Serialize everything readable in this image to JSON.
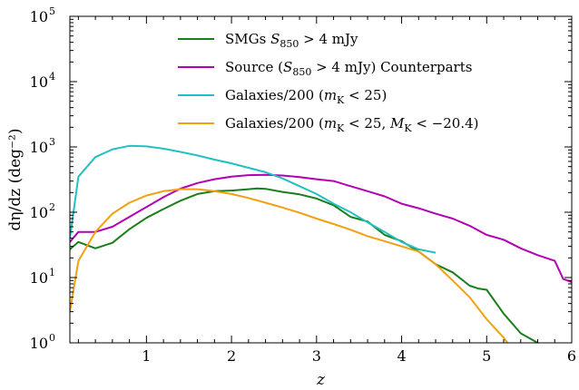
{
  "chart_data": {
    "type": "line",
    "xlabel": "z",
    "ylabel": "dη/dz (deg⁻²)",
    "xlim": [
      0.1,
      6.0
    ],
    "ylim_log10": [
      0,
      5
    ],
    "yscale": "log",
    "x_tick_labels": [
      "1",
      "2",
      "3",
      "4",
      "5",
      "6"
    ],
    "x_ticks": [
      1,
      2,
      3,
      4,
      5,
      6
    ],
    "y_ticks_log10": [
      0,
      1,
      2,
      3,
      4,
      5
    ],
    "y_tick_base": "10",
    "legend_position": "top-right",
    "series": [
      {
        "name": "SMGs S850 > 4 mJy",
        "name_parts": {
          "pre": "SMGs ",
          "var": "S",
          "sub": "850",
          "post": " > 4 mJy"
        },
        "color": "#1a7f1a",
        "x": [
          0.1,
          0.2,
          0.4,
          0.6,
          0.8,
          1.0,
          1.2,
          1.4,
          1.6,
          1.8,
          2.0,
          2.2,
          2.3,
          2.4,
          2.6,
          2.8,
          3.0,
          3.2,
          3.4,
          3.6,
          3.8,
          4.0,
          4.2,
          4.4,
          4.6,
          4.8,
          4.9,
          5.0,
          5.2,
          5.4,
          5.6,
          5.8
        ],
        "y": [
          27,
          35,
          28,
          34,
          55,
          82,
          112,
          150,
          190,
          210,
          215,
          225,
          232,
          228,
          205,
          188,
          162,
          128,
          85,
          72,
          45,
          36,
          25,
          16,
          12,
          7.5,
          6.8,
          6.5,
          2.8,
          1.4,
          1.0,
          0.8
        ]
      },
      {
        "name": "Source (S850 > 4 mJy) Counterparts",
        "name_parts": {
          "pre": "Source (",
          "var": "S",
          "sub": "850",
          "post": " > 4 mJy) Counterparts"
        },
        "color": "#b400b4",
        "x": [
          0.1,
          0.2,
          0.4,
          0.6,
          0.8,
          1.0,
          1.2,
          1.4,
          1.6,
          1.8,
          2.0,
          2.2,
          2.4,
          2.6,
          2.8,
          3.0,
          3.2,
          3.4,
          3.6,
          3.8,
          4.0,
          4.2,
          4.4,
          4.6,
          4.8,
          5.0,
          5.2,
          5.4,
          5.6,
          5.8,
          5.9,
          6.0
        ],
        "y": [
          35,
          50,
          50,
          60,
          85,
          120,
          170,
          230,
          280,
          320,
          350,
          370,
          375,
          365,
          345,
          320,
          300,
          250,
          210,
          175,
          135,
          115,
          95,
          80,
          62,
          45,
          38,
          28,
          22,
          18,
          9.5,
          8.5
        ]
      },
      {
        "name": "Galaxies/200 (mK < 25)",
        "name_parts": {
          "pre": "Galaxies/200 (",
          "var": "m",
          "sub": "K",
          "post": " < 25)"
        },
        "color": "#22c0c4",
        "x": [
          0.1,
          0.2,
          0.4,
          0.6,
          0.8,
          1.0,
          1.2,
          1.4,
          1.6,
          1.8,
          2.0,
          2.2,
          2.4,
          2.6,
          2.8,
          3.0,
          3.2,
          3.4,
          3.6,
          3.8,
          4.0,
          4.2,
          4.4
        ],
        "y": [
          40,
          350,
          700,
          920,
          1040,
          1020,
          940,
          840,
          740,
          640,
          560,
          480,
          410,
          330,
          250,
          190,
          135,
          100,
          70,
          50,
          35,
          27,
          24
        ]
      },
      {
        "name": "Galaxies/200 (mK < 25, MK < −20.4)",
        "name_parts": {
          "pre": "Galaxies/200 (",
          "var": "m",
          "sub": "K",
          "post": " < 25, ",
          "var2": "M",
          "sub2": "K",
          "post2": " < −20.4)"
        },
        "color": "#f0a010",
        "x": [
          0.1,
          0.2,
          0.4,
          0.6,
          0.8,
          1.0,
          1.2,
          1.4,
          1.6,
          1.8,
          2.0,
          2.2,
          2.4,
          2.6,
          2.8,
          3.0,
          3.2,
          3.4,
          3.6,
          3.8,
          4.0,
          4.2,
          4.4,
          4.6,
          4.8,
          5.0,
          5.2,
          5.3
        ],
        "y": [
          3,
          18,
          50,
          95,
          140,
          180,
          210,
          225,
          225,
          210,
          190,
          165,
          140,
          118,
          98,
          80,
          66,
          54,
          43,
          36,
          30,
          25,
          16,
          9,
          5,
          2.3,
          1.2,
          0.8
        ]
      }
    ]
  }
}
